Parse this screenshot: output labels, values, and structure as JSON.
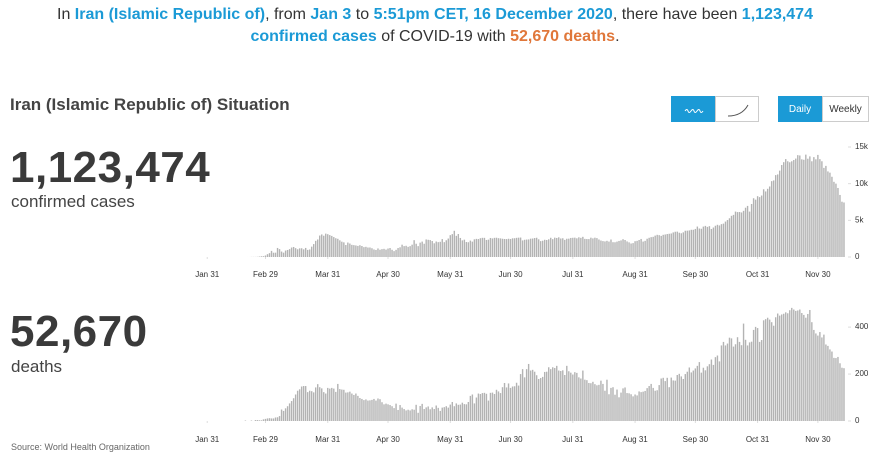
{
  "headline": [
    {
      "text": "In ",
      "style": "plain"
    },
    {
      "text": "Iran (Islamic Republic of)",
      "style": "blue"
    },
    {
      "text": ", from ",
      "style": "plain"
    },
    {
      "text": "Jan 3",
      "style": "blue"
    },
    {
      "text": " to ",
      "style": "plain"
    },
    {
      "text": "5:51pm CET, 16 December 2020",
      "style": "blue"
    },
    {
      "text": ", there have been ",
      "style": "plain"
    },
    {
      "text": "1,123,474 confirmed cases",
      "style": "blue"
    },
    {
      "text": " of COVID-19 with ",
      "style": "plain"
    },
    {
      "text": "52,670 deaths",
      "style": "orange"
    },
    {
      "text": ".",
      "style": "plain"
    }
  ],
  "title": "Iran (Islamic Republic of) Situation",
  "controls": {
    "daily": "Daily",
    "weekly": "Weekly"
  },
  "cases": {
    "total": "1,123,474",
    "label": "confirmed cases"
  },
  "deaths": {
    "total": "52,670",
    "label": "deaths"
  },
  "source": "Source: World Health Organization",
  "chart_data": [
    {
      "type": "bar",
      "color": "#b3b3b3",
      "x": [
        47,
        48,
        49,
        50,
        51,
        52,
        53,
        54,
        55,
        56,
        57,
        58,
        59,
        60,
        61,
        62,
        63,
        64,
        65,
        66,
        67,
        68,
        69,
        70,
        71,
        72,
        73,
        74,
        75,
        76,
        77,
        78,
        79,
        80,
        81,
        82,
        83,
        84,
        85,
        86,
        87,
        88,
        89,
        90,
        91,
        92,
        93,
        94,
        95,
        96,
        97,
        98,
        99,
        100,
        101,
        102,
        103,
        104,
        105,
        106,
        107,
        108,
        109,
        110,
        111,
        112,
        113,
        114,
        115,
        116,
        117,
        118,
        119,
        120,
        121,
        122,
        123,
        124,
        125,
        126,
        127,
        128,
        129,
        130,
        131,
        132,
        133,
        134,
        135,
        136,
        137,
        138,
        139,
        140,
        141,
        142,
        143,
        144,
        145,
        146,
        147,
        148,
        149,
        150,
        151,
        152,
        153,
        154,
        155,
        156,
        157,
        158,
        159,
        160,
        161,
        162,
        163,
        164,
        165,
        166,
        167,
        168,
        169,
        170,
        171,
        172,
        173,
        174,
        175,
        176,
        177,
        178,
        179,
        180,
        181,
        182,
        183,
        184,
        185,
        186,
        187,
        188,
        189,
        190,
        191,
        192,
        193,
        194,
        195,
        196,
        197,
        198,
        199,
        200,
        201,
        202,
        203,
        204,
        205,
        206,
        207,
        208,
        209,
        210,
        211,
        212,
        213,
        214,
        215,
        216,
        217,
        218,
        219,
        220,
        221,
        222,
        223,
        224,
        225,
        226,
        227,
        228,
        229,
        230,
        231,
        232,
        233,
        234,
        235,
        236,
        237,
        238,
        239,
        240,
        241,
        242,
        243,
        244,
        245,
        246,
        247,
        248,
        249,
        250,
        251,
        252,
        253,
        254,
        255,
        256,
        257,
        258,
        259,
        260,
        261,
        262,
        263,
        264,
        265,
        266,
        267,
        268,
        269,
        270,
        271,
        272,
        273,
        274,
        275,
        276,
        277,
        278,
        279,
        280,
        281,
        282,
        283,
        284,
        285,
        286,
        287,
        288,
        289,
        290,
        291,
        292,
        293,
        294,
        295,
        296,
        297,
        298,
        299,
        300,
        301,
        302,
        303,
        304,
        305,
        306,
        307,
        308,
        309,
        310,
        311,
        312,
        313,
        314,
        315,
        316,
        317,
        318,
        319,
        320,
        321,
        322,
        323,
        324,
        325,
        326,
        327,
        328,
        329,
        330,
        331,
        332,
        333,
        334,
        335,
        336,
        337,
        338,
        339,
        340,
        341,
        342,
        343,
        344,
        345
      ],
      "values": [
        0,
        2,
        3,
        13,
        15,
        15,
        28,
        61,
        95,
        106,
        205,
        385,
        523,
        835,
        586,
        591,
        1234,
        1076,
        743,
        595,
        881,
        958,
        1075,
        1289,
        1365,
        1209,
        1053,
        1178,
        1192,
        1046,
        1237,
        966,
        1028,
        1411,
        1762,
        2206,
        2389,
        2926,
        3076,
        2901,
        3186,
        3110,
        2987,
        2875,
        2715,
        2560,
        2483,
        2274,
        2089,
        1997,
        1634,
        1972,
        1837,
        1657,
        1617,
        1574,
        1512,
        1606,
        1499,
        1343,
        1389,
        1294,
        1297,
        1194,
        1030,
        960,
        1168,
        991,
        1073,
        1112,
        1006,
        1153,
        1223,
        983,
        802,
        976,
        1223,
        1323,
        1680,
        1485,
        1529,
        1383,
        1481,
        1683,
        2294,
        1808,
        1481,
        1958,
        2102,
        1806,
        2392,
        2346,
        2311,
        2180,
        1869,
        2111,
        2023,
        2073,
        2442,
        2023,
        2282,
        2516,
        2979,
        3117,
        3574,
        2886,
        3134,
        2596,
        2269,
        2364,
        2043,
        2011,
        2238,
        2095,
        2410,
        2472,
        2449,
        2562,
        2615,
        2612,
        2322,
        2368,
        2595,
        2531,
        2612,
        2628,
        2563,
        2536,
        2489,
        2457,
        2445,
        2489,
        2457,
        2549,
        2560,
        2613,
        2637,
        2652,
        2262,
        2349,
        2379,
        2397,
        2500,
        2521,
        2586,
        2625,
        2414,
        2166,
        2222,
        2349,
        2316,
        2414,
        2621,
        2434,
        2636,
        2596,
        2685,
        2521,
        2556,
        2333,
        2489,
        2502,
        2598,
        2621,
        2637,
        2549,
        2685,
        2614,
        2751,
        2472,
        2450,
        2444,
        2634,
        2536,
        2634,
        2575,
        2387,
        2245,
        2168,
        2125,
        2206,
        2102,
        2385,
        2020,
        2009,
        2097,
        2190,
        2262,
        2427,
        2319,
        2125,
        1997,
        1841,
        1893,
        2152,
        2203,
        2319,
        2462,
        2103,
        2201,
        2489,
        2620,
        2705,
        2751,
        2916,
        3024,
        2979,
        2880,
        3027,
        3070,
        3134,
        3169,
        3206,
        3350,
        3445,
        3461,
        3311,
        3237,
        3361,
        3581,
        3592,
        3625,
        3712,
        3712,
        3825,
        4151,
        3885,
        3853,
        4147,
        4242,
        4108,
        4205,
        3822,
        4022,
        4263,
        4392,
        4300,
        4479,
        4551,
        4830,
        5039,
        5282,
        5616,
        5744,
        6191,
        6124,
        6134,
        6074,
        6295,
        6719,
        6968,
        6191,
        7229,
        8010,
        7820,
        8293,
        8164,
        8383,
        9236,
        8941,
        9300,
        9617,
        10343,
        10442,
        11168,
        11261,
        11780,
        12543,
        12931,
        13352,
        13052,
        12919,
        13053,
        13223,
        13421,
        13890,
        13843,
        13321,
        13260,
        13960,
        13402,
        13721,
        13053,
        13621,
        13321,
        13922,
        13341,
        13056,
        12151,
        12424,
        11671,
        11500,
        10941,
        10254,
        10003,
        9413,
        8461,
        7538,
        7434
      ],
      "xlim": [
        0,
        347
      ],
      "xticks": [
        {
          "value": 28,
          "label": "Jan 31"
        },
        {
          "value": 57,
          "label": "Feb 29"
        },
        {
          "value": 88,
          "label": "Mar 31"
        },
        {
          "value": 118,
          "label": "Apr 30"
        },
        {
          "value": 149,
          "label": "May 31"
        },
        {
          "value": 179,
          "label": "Jun 30"
        },
        {
          "value": 210,
          "label": "Jul 31"
        },
        {
          "value": 241,
          "label": "Aug 31"
        },
        {
          "value": 271,
          "label": "Sep 30"
        },
        {
          "value": 302,
          "label": "Oct 31"
        },
        {
          "value": 332,
          "label": "Nov 30"
        }
      ],
      "ylim": [
        0,
        15000
      ],
      "yticks": [
        0,
        {
          "value": 5000,
          "label": "5k"
        },
        {
          "value": 10000,
          "label": "10k"
        },
        {
          "value": 15000,
          "label": "15k"
        }
      ]
    },
    {
      "type": "bar",
      "color": "#b3b3b3",
      "x": [
        47,
        48,
        49,
        50,
        51,
        52,
        53,
        54,
        55,
        56,
        57,
        58,
        59,
        60,
        61,
        62,
        63,
        64,
        65,
        66,
        67,
        68,
        69,
        70,
        71,
        72,
        73,
        74,
        75,
        76,
        77,
        78,
        79,
        80,
        81,
        82,
        83,
        84,
        85,
        86,
        87,
        88,
        89,
        90,
        91,
        92,
        93,
        94,
        95,
        96,
        97,
        98,
        99,
        100,
        101,
        102,
        103,
        104,
        105,
        106,
        107,
        108,
        109,
        110,
        111,
        112,
        113,
        114,
        115,
        116,
        117,
        118,
        119,
        120,
        121,
        122,
        123,
        124,
        125,
        126,
        127,
        128,
        129,
        130,
        131,
        132,
        133,
        134,
        135,
        136,
        137,
        138,
        139,
        140,
        141,
        142,
        143,
        144,
        145,
        146,
        147,
        148,
        149,
        150,
        151,
        152,
        153,
        154,
        155,
        156,
        157,
        158,
        159,
        160,
        161,
        162,
        163,
        164,
        165,
        166,
        167,
        168,
        169,
        170,
        171,
        172,
        173,
        174,
        175,
        176,
        177,
        178,
        179,
        180,
        181,
        182,
        183,
        184,
        185,
        186,
        187,
        188,
        189,
        190,
        191,
        192,
        193,
        194,
        195,
        196,
        197,
        198,
        199,
        200,
        201,
        202,
        203,
        204,
        205,
        206,
        207,
        208,
        209,
        210,
        211,
        212,
        213,
        214,
        215,
        216,
        217,
        218,
        219,
        220,
        221,
        222,
        223,
        224,
        225,
        226,
        227,
        228,
        229,
        230,
        231,
        232,
        233,
        234,
        235,
        236,
        237,
        238,
        239,
        240,
        241,
        242,
        243,
        244,
        245,
        246,
        247,
        248,
        249,
        250,
        251,
        252,
        253,
        254,
        255,
        256,
        257,
        258,
        259,
        260,
        261,
        262,
        263,
        264,
        265,
        266,
        267,
        268,
        269,
        270,
        271,
        272,
        273,
        274,
        275,
        276,
        277,
        278,
        279,
        280,
        281,
        282,
        283,
        284,
        285,
        286,
        287,
        288,
        289,
        290,
        291,
        292,
        293,
        294,
        295,
        296,
        297,
        298,
        299,
        300,
        301,
        302,
        303,
        304,
        305,
        306,
        307,
        308,
        309,
        310,
        311,
        312,
        313,
        314,
        315,
        316,
        317,
        318,
        319,
        320,
        321,
        322,
        323,
        324,
        325,
        326,
        327,
        328,
        329,
        330,
        331,
        332,
        333,
        334,
        335,
        336,
        337,
        338,
        339,
        340,
        341,
        342,
        343,
        344,
        345
      ],
      "values": [
        2,
        0,
        0,
        2,
        0,
        4,
        4,
        3,
        3,
        7,
        9,
        11,
        12,
        11,
        11,
        15,
        16,
        21,
        49,
        43,
        54,
        63,
        75,
        85,
        97,
        113,
        129,
        135,
        147,
        149,
        149,
        123,
        129,
        127,
        122,
        143,
        157,
        144,
        139,
        123,
        117,
        141,
        138,
        141,
        138,
        124,
        158,
        136,
        134,
        133,
        121,
        122,
        125,
        117,
        111,
        117,
        107,
        98,
        94,
        89,
        92,
        87,
        88,
        90,
        94,
        87,
        96,
        93,
        80,
        71,
        74,
        71,
        68,
        63,
        55,
        74,
        47,
        68,
        57,
        51,
        45,
        48,
        45,
        50,
        48,
        69,
        35,
        64,
        73,
        51,
        58,
        62,
        50,
        58,
        51,
        66,
        56,
        43,
        57,
        59,
        63,
        57,
        70,
        81,
        63,
        75,
        69,
        70,
        78,
        72,
        71,
        81,
        107,
        113,
        75,
        100,
        117,
        115,
        119,
        120,
        116,
        87,
        120,
        121,
        115,
        133,
        126,
        119,
        144,
        162,
        143,
        160,
        141,
        147,
        148,
        163,
        151,
        200,
        221,
        186,
        221,
        243,
        215,
        218,
        210,
        195,
        179,
        183,
        188,
        209,
        210,
        229,
        221,
        229,
        226,
        235,
        215,
        213,
        216,
        196,
        235,
        212,
        206,
        198,
        208,
        205,
        186,
        181,
        215,
        176,
        174,
        162,
        161,
        167,
        157,
        152,
        154,
        172,
        158,
        129,
        176,
        114,
        141,
        144,
        112,
        134,
        101,
        121,
        139,
        143,
        119,
        118,
        114,
        105,
        113,
        109,
        126,
        123,
        125,
        128,
        140,
        149,
        158,
        141,
        129,
        131,
        153,
        181,
        184,
        170,
        184,
        144,
        185,
        173,
        172,
        196,
        201,
        190,
        179,
        200,
        210,
        228,
        207,
        215,
        224,
        235,
        251,
        206,
        227,
        216,
        233,
        242,
        262,
        239,
        272,
        279,
        254,
        322,
        337,
        322,
        330,
        355,
        352,
        317,
        327,
        357,
        337,
        323,
        415,
        346,
        322,
        335,
        338,
        388,
        401,
        396,
        337,
        345,
        429,
        434,
        440,
        432,
        421,
        406,
        442,
        458,
        449,
        454,
        457,
        463,
        459,
        472,
        482,
        475,
        469,
        471,
        475,
        460,
        452,
        440,
        456,
        473,
        421,
        388,
        373,
        364,
        379,
        356,
        368,
        326,
        320,
        305,
        296,
        269,
        268,
        273,
        246,
        227,
        225
      ],
      "xlim": [
        0,
        347
      ],
      "xticks": [
        {
          "value": 28,
          "label": "Jan 31"
        },
        {
          "value": 57,
          "label": "Feb 29"
        },
        {
          "value": 88,
          "label": "Mar 31"
        },
        {
          "value": 118,
          "label": "Apr 30"
        },
        {
          "value": 149,
          "label": "May 31"
        },
        {
          "value": 179,
          "label": "Jun 30"
        },
        {
          "value": 210,
          "label": "Jul 31"
        },
        {
          "value": 241,
          "label": "Aug 31"
        },
        {
          "value": 271,
          "label": "Sep 30"
        },
        {
          "value": 302,
          "label": "Oct 31"
        },
        {
          "value": 332,
          "label": "Nov 30"
        }
      ],
      "ylim": [
        0,
        490
      ],
      "yticks": [
        0,
        200,
        400
      ]
    }
  ]
}
